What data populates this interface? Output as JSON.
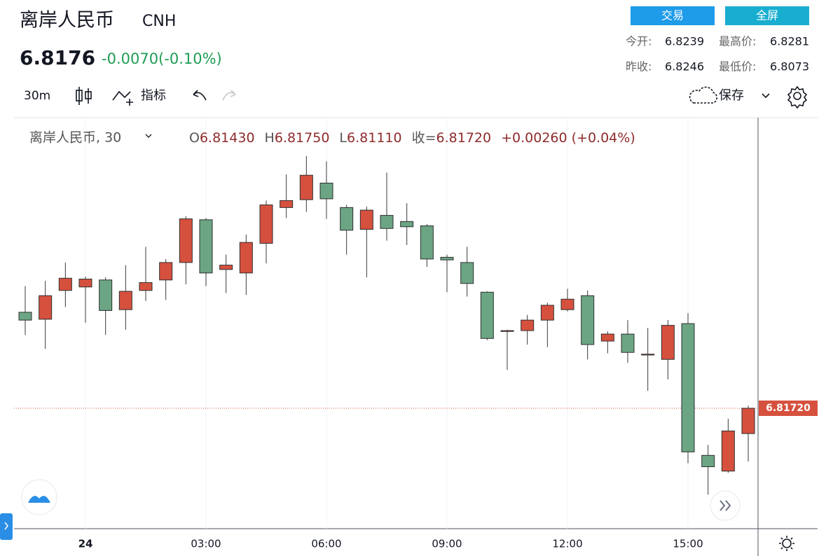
{
  "header": {
    "title": "离岸人民币",
    "symbol": "CNH",
    "price": "6.8176",
    "change": "-0.0070(-0.10%)",
    "buttons": [
      "交易",
      "全屏"
    ],
    "stats": [
      [
        "今开:",
        "6.8239",
        "最高价:",
        "6.8281"
      ],
      [
        "昨收:",
        "6.8246",
        "最低价:",
        "6.8073"
      ]
    ]
  },
  "toolbar": {
    "interval": "30m",
    "indicators": "指标",
    "save": "保存"
  },
  "chart_data": {
    "type": "candlestick",
    "legend": {
      "name": "离岸人民币, 30",
      "items": [
        [
          "O",
          "6.81430"
        ],
        [
          "H",
          "6.81750"
        ],
        [
          "L",
          "6.81110"
        ],
        [
          "收=",
          "6.81720"
        ]
      ],
      "change": "+0.00260 (+0.04%)"
    },
    "categories": [
      null,
      null,
      null,
      "24",
      null,
      null,
      null,
      null,
      null,
      "03:00",
      null,
      null,
      null,
      null,
      null,
      "06:00",
      null,
      null,
      null,
      null,
      null,
      "09:00",
      null,
      null,
      null,
      null,
      null,
      "12:00",
      null,
      null,
      null,
      null,
      null,
      "15:00",
      null,
      null,
      null
    ],
    "open": [
      6.8282,
      6.8274,
      6.8307,
      6.8311,
      6.8319,
      6.8285,
      6.8307,
      6.8319,
      6.8339,
      6.8388,
      6.8331,
      6.8327,
      6.8361,
      6.8402,
      6.8411,
      6.843,
      6.8402,
      6.8377,
      6.8393,
      6.8386,
      6.8381,
      6.8345,
      6.8339,
      6.8305,
      6.826,
      6.8261,
      6.8273,
      6.8285,
      6.8301,
      6.8249,
      6.8257,
      6.8233,
      6.8228,
      6.8269,
      6.8118,
      6.81,
      6.8143
    ],
    "high": [
      6.8312,
      6.8318,
      6.8339,
      6.8323,
      6.8322,
      6.8336,
      6.8357,
      6.8343,
      6.8392,
      6.839,
      6.8348,
      6.8371,
      6.841,
      6.844,
      6.8461,
      6.8455,
      6.8405,
      6.8403,
      6.8442,
      6.8407,
      6.8383,
      6.8348,
      6.8357,
      6.8306,
      6.8262,
      6.8279,
      6.8293,
      6.8309,
      6.8307,
      6.826,
      6.8273,
      6.8264,
      6.8273,
      6.8281,
      6.813,
      6.816,
      6.8175
    ],
    "low": [
      6.8256,
      6.824,
      6.8288,
      6.827,
      6.8256,
      6.8262,
      6.8295,
      6.8296,
      6.8314,
      6.8312,
      6.8304,
      6.8302,
      6.8338,
      6.839,
      6.8397,
      6.8389,
      6.8348,
      6.8322,
      6.8364,
      6.8359,
      6.8334,
      6.8305,
      6.83,
      6.825,
      6.8216,
      6.8245,
      6.8242,
      6.8283,
      6.8228,
      6.8235,
      6.8224,
      6.8192,
      6.8205,
      6.8109,
      6.8073,
      6.8098,
      6.8111
    ],
    "close": [
      6.8273,
      6.8301,
      6.8321,
      6.832,
      6.8284,
      6.8306,
      6.8316,
      6.8339,
      6.8389,
      6.8327,
      6.8336,
      6.8362,
      6.8405,
      6.841,
      6.8439,
      6.8412,
      6.8376,
      6.8399,
      6.8378,
      6.838,
      6.8343,
      6.8342,
      6.8315,
      6.8252,
      6.8261,
      6.8273,
      6.829,
      6.8297,
      6.8245,
      6.8257,
      6.8236,
      6.8234,
      6.8267,
      6.8122,
      6.8105,
      6.8146,
      6.8172
    ],
    "up_color": "#d6503e",
    "down_color": "#6ba584",
    "ylim": [
      6.8034,
      6.8505
    ],
    "price_line": {
      "value": 6.8172,
      "label": "6.81720"
    },
    "grid": true
  }
}
